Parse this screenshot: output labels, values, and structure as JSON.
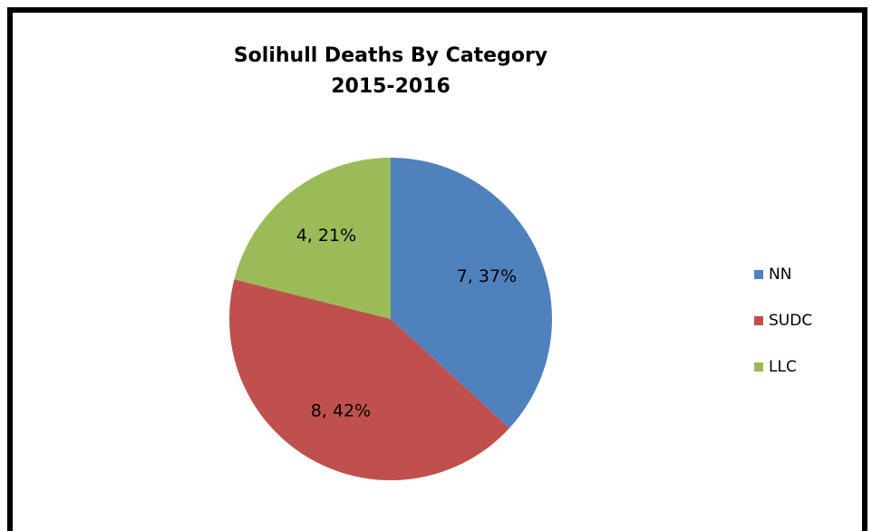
{
  "chart_data": {
    "type": "pie",
    "title": "Solihull Deaths By Category",
    "subtitle": "2015-2016",
    "categories": [
      "NN",
      "SUDC",
      "LLC"
    ],
    "values": [
      7,
      8,
      4
    ],
    "value_labels": [
      "7, 37%",
      "8, 42%",
      "4, 21%"
    ],
    "colors": [
      "#4f81bd",
      "#c0504d",
      "#9bbb59"
    ],
    "legend": "right"
  }
}
